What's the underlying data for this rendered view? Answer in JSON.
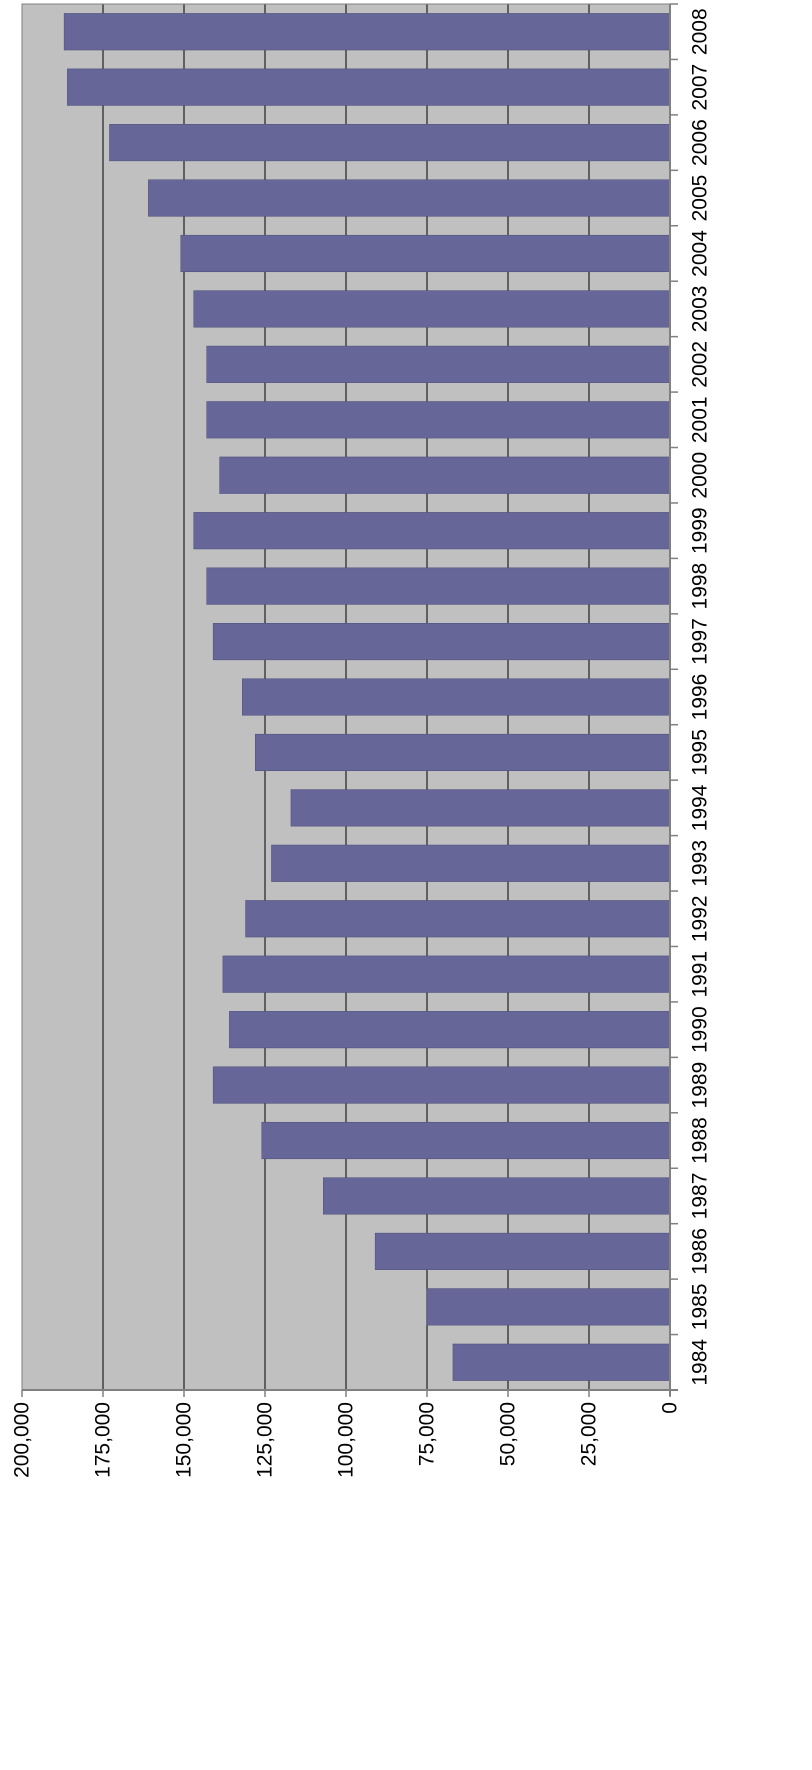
{
  "colors": {
    "plot_background": "#c0c0c0",
    "bar_fill": "#666699",
    "bar_stroke": "#4d4d7a",
    "gridline": "#000000",
    "axis": "#808080",
    "label": "#000000"
  },
  "chart_data": {
    "type": "bar",
    "orientation": "horizontal",
    "title": "",
    "xlabel": "",
    "ylabel": "",
    "grid": true,
    "legend": "none",
    "ylim": [
      0,
      200000
    ],
    "tick_values": [
      0,
      25000,
      50000,
      75000,
      100000,
      125000,
      150000,
      175000,
      200000
    ],
    "tick_labels": [
      "0",
      "25,000",
      "50,000",
      "75,000",
      "100,000",
      "125,000",
      "150,000",
      "175,000",
      "200,000"
    ],
    "categories": [
      "2008",
      "2007",
      "2006",
      "2005",
      "2004",
      "2003",
      "2002",
      "2001",
      "2000",
      "1999",
      "1998",
      "1997",
      "1996",
      "1995",
      "1994",
      "1993",
      "1992",
      "1991",
      "1990",
      "1989",
      "1988",
      "1987",
      "1986",
      "1985",
      "1984"
    ],
    "values": [
      187000,
      186000,
      173000,
      161000,
      151000,
      147000,
      143000,
      143000,
      139000,
      147000,
      143000,
      141000,
      132000,
      128000,
      117000,
      123000,
      131000,
      138000,
      136000,
      141000,
      126000,
      107000,
      91000,
      75000,
      67000
    ]
  }
}
